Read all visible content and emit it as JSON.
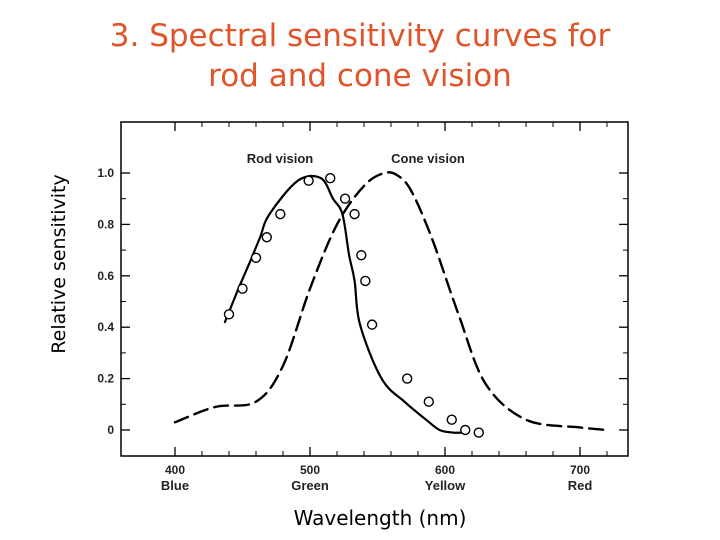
{
  "slide": {
    "title_line1": "3. Spectral sensitivity curves for",
    "title_line2": "rod and cone vision"
  },
  "chart_data": {
    "type": "line",
    "xlabel": "Wavelength (nm)",
    "ylabel": "Relative sensitivity",
    "xlim": [
      380,
      725
    ],
    "ylim": [
      -0.1,
      1.2
    ],
    "x_ticks": [
      {
        "value": 400,
        "label": "400",
        "sublabel": "Blue"
      },
      {
        "value": 500,
        "label": "500",
        "sublabel": "Green"
      },
      {
        "value": 600,
        "label": "600",
        "sublabel": "Yellow"
      },
      {
        "value": 700,
        "label": "700",
        "sublabel": "Red"
      }
    ],
    "y_ticks": [
      {
        "value": 0,
        "label": "0"
      },
      {
        "value": 0.2,
        "label": "0.2"
      },
      {
        "value": 0.4,
        "label": "0.4"
      },
      {
        "value": 0.6,
        "label": "0.6"
      },
      {
        "value": 0.8,
        "label": "0.8"
      },
      {
        "value": 1.0,
        "label": "1.0"
      }
    ],
    "grid": false,
    "series": [
      {
        "name": "Rod vision",
        "style": "solid-with-markers",
        "color": "#000000",
        "x": [
          437,
          447,
          456,
          463,
          470,
          491,
          508,
          517,
          524,
          529,
          533,
          537,
          553,
          570,
          586,
          596,
          606,
          613
        ],
        "y": [
          0.42,
          0.55,
          0.66,
          0.75,
          0.84,
          0.97,
          0.98,
          0.9,
          0.84,
          0.68,
          0.58,
          0.41,
          0.2,
          0.11,
          0.04,
          0.0,
          -0.01,
          -0.01
        ],
        "markers_x": [
          440,
          450,
          460,
          468,
          478,
          499,
          515,
          526,
          533,
          538,
          541,
          546,
          572,
          588,
          605,
          615,
          625
        ],
        "markers_y": [
          0.45,
          0.55,
          0.67,
          0.75,
          0.84,
          0.97,
          0.98,
          0.9,
          0.84,
          0.68,
          0.58,
          0.41,
          0.2,
          0.11,
          0.04,
          0.0,
          -0.01
        ]
      },
      {
        "name": "Cone vision",
        "style": "dashed",
        "color": "#000000",
        "x": [
          400,
          430,
          460,
          480,
          500,
          520,
          540,
          555,
          565,
          575,
          590,
          610,
          630,
          660,
          700,
          720
        ],
        "y": [
          0.03,
          0.09,
          0.11,
          0.25,
          0.55,
          0.8,
          0.95,
          1.0,
          0.99,
          0.93,
          0.75,
          0.45,
          0.18,
          0.04,
          0.01,
          0.0
        ]
      }
    ]
  }
}
